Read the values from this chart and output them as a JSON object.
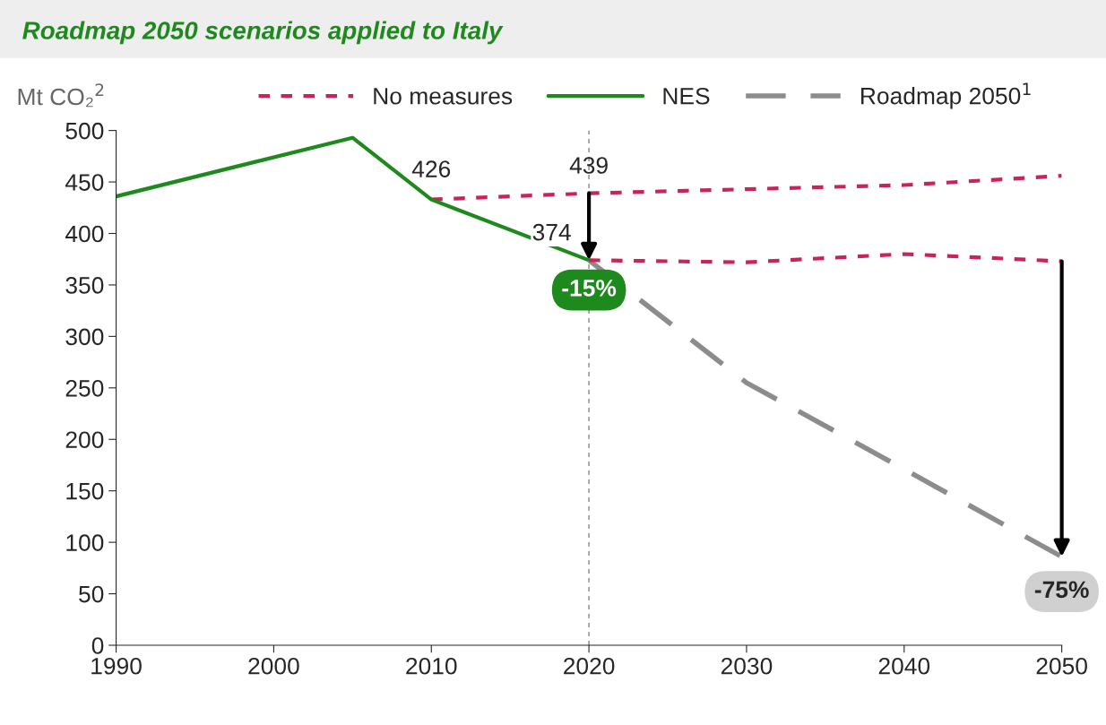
{
  "chart_data": {
    "type": "line",
    "title": "Roadmap 2050 scenarios applied to Italy",
    "ylabel": "Mt CO₂$^{2}$",
    "series": [
      {
        "name": "No measures",
        "color": "#c8245a",
        "line_style": "dotted",
        "x": [
          2010,
          2020,
          2030,
          2040,
          2050
        ],
        "values": [
          433,
          439,
          443,
          447,
          456
        ]
      },
      {
        "name": "NES",
        "color": "#1e8a1e",
        "line_style": "solid",
        "x": [
          1990,
          2005,
          2010,
          2020
        ],
        "values": [
          436,
          493,
          433,
          374
        ]
      },
      {
        "name": "Roadmap 2050$^{1}$",
        "color": "#8c8c8c",
        "line_style": "dashed",
        "x": [
          2020,
          2030,
          2040,
          2050
        ],
        "values": [
          374,
          255,
          171,
          86
        ]
      },
      {
        "color": "#c8245a",
        "line_style": "dotted",
        "x": [
          2020,
          2030,
          2040,
          2050
        ],
        "values": [
          374,
          372,
          380,
          373
        ]
      }
    ],
    "xlim": [
      1990,
      2050
    ],
    "xticks": [
      1990,
      2000,
      2010,
      2020,
      2030,
      2040,
      2050
    ],
    "ylim": [
      0,
      500
    ],
    "yticks": [
      0,
      50,
      100,
      150,
      200,
      250,
      300,
      350,
      400,
      450,
      500
    ],
    "ref_lines": [
      {
        "axis": "x",
        "value": 2020,
        "color": "#999999",
        "line_style": "dotted"
      }
    ],
    "annotations": [
      "426",
      {
        "text": "439",
        "x": 2020,
        "y": 439
      },
      {
        "text": "374",
        "x": 2020,
        "y": 374
      },
      "-15%",
      "-75%"
    ],
    "grid": false,
    "legend": "top",
    "marker": "none"
  }
}
